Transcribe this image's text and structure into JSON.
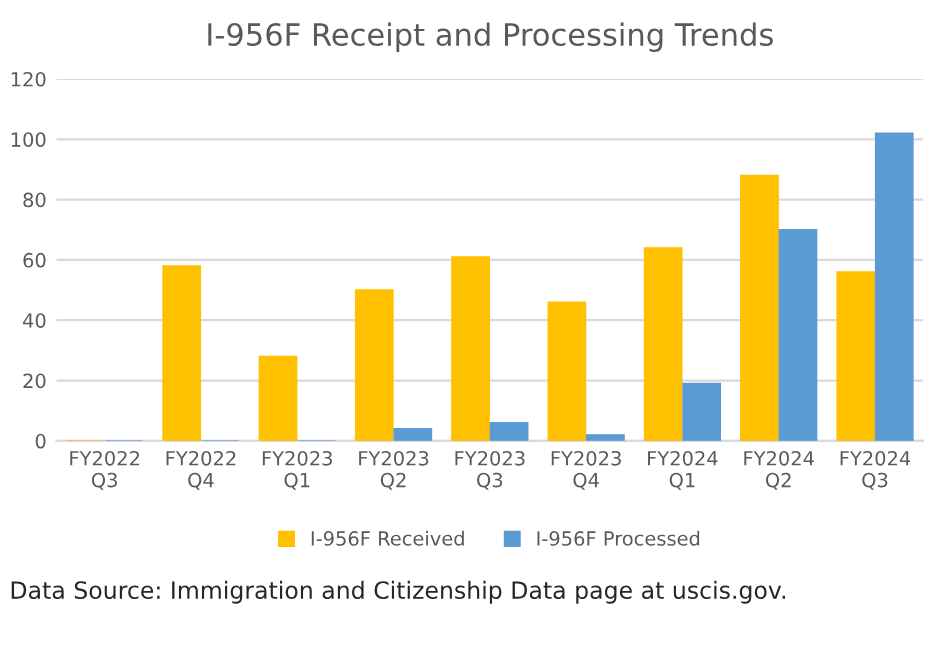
{
  "chart_data": {
    "type": "bar",
    "title": "I-956F Receipt and Processing Trends",
    "categories": [
      "FY2022\nQ3",
      "FY2022\nQ4",
      "FY2023\nQ1",
      "FY2023\nQ2",
      "FY2023\nQ3",
      "FY2023\nQ4",
      "FY2024\nQ1",
      "FY2024\nQ2",
      "FY2024\nQ3"
    ],
    "series": [
      {
        "name": "I-956F Received",
        "color": "#ffc000",
        "values": [
          0,
          58,
          28,
          50,
          61,
          46,
          64,
          88,
          56
        ]
      },
      {
        "name": "I-956F Processed",
        "color": "#5b9bd5",
        "values": [
          0,
          0,
          0,
          4,
          6,
          2,
          19,
          70,
          102
        ]
      }
    ],
    "ylim": [
      0,
      120
    ],
    "yticks": [
      0,
      20,
      40,
      60,
      80,
      100,
      120
    ],
    "grid": "y",
    "legend": "bottom",
    "annotations": [
      "Data Source: Immigration and Citizenship Data page at uscis.gov."
    ]
  }
}
